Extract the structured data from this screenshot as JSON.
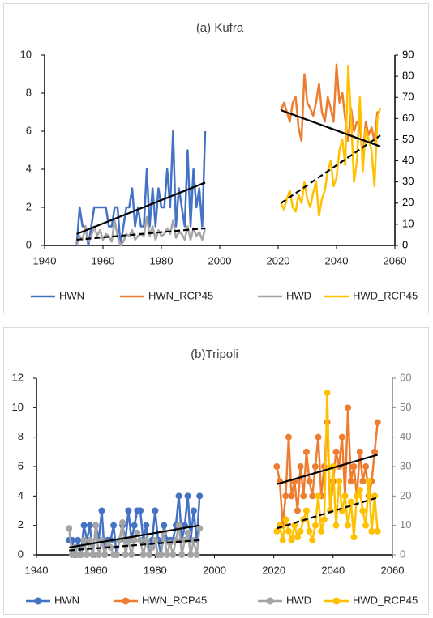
{
  "chart_data": [
    {
      "type": "line",
      "title": "(a) Kufra",
      "markers": false,
      "xlim": [
        1940,
        2060
      ],
      "xticks": [
        1940,
        1960,
        1980,
        2000,
        2020,
        2040,
        2060
      ],
      "ylim": [
        0,
        10
      ],
      "yticks": [
        0,
        2,
        4,
        6,
        8,
        10
      ],
      "y2lim": [
        0,
        90
      ],
      "y2ticks": [
        0,
        10,
        20,
        30,
        40,
        50,
        60,
        70,
        80,
        90
      ],
      "y2color": "#000000",
      "series": [
        {
          "name": "HWN",
          "color": "#4472c4",
          "axis": "y",
          "x": [
            1951,
            1952,
            1953,
            1954,
            1955,
            1956,
            1957,
            1958,
            1959,
            1960,
            1961,
            1962,
            1963,
            1964,
            1965,
            1966,
            1967,
            1968,
            1969,
            1970,
            1971,
            1972,
            1973,
            1974,
            1975,
            1976,
            1977,
            1978,
            1979,
            1980,
            1981,
            1982,
            1983,
            1984,
            1985,
            1986,
            1987,
            1988,
            1989,
            1990,
            1991,
            1992,
            1993,
            1994,
            1995
          ],
          "values": [
            0,
            2,
            1,
            1,
            0,
            1,
            2,
            2,
            2,
            2,
            2,
            1,
            1,
            2,
            2,
            0,
            1,
            2,
            2,
            3,
            1,
            2,
            1,
            1,
            4,
            1,
            3,
            1,
            3,
            2,
            2,
            4,
            2,
            6,
            1,
            3,
            2,
            1,
            5,
            1,
            4,
            2,
            3,
            1,
            6
          ]
        },
        {
          "name": "HWN_RCP45",
          "color": "#ed7d31",
          "axis": "y",
          "x": [
            2021,
            2022,
            2023,
            2024,
            2025,
            2026,
            2027,
            2028,
            2029,
            2030,
            2031,
            2032,
            2033,
            2034,
            2035,
            2036,
            2037,
            2038,
            2039,
            2040,
            2041,
            2042,
            2043,
            2044,
            2045,
            2046,
            2047,
            2048,
            2049,
            2050,
            2051,
            2052,
            2053,
            2054,
            2055
          ],
          "values": [
            7.1,
            7.5,
            7,
            6.5,
            7.5,
            7.8,
            6.2,
            5.5,
            9,
            7.5,
            7.2,
            6.8,
            7.5,
            8.5,
            7,
            6.5,
            7.8,
            7.2,
            6.5,
            9.5,
            7.5,
            8,
            6.6,
            5.5,
            7.2,
            6,
            6.5,
            6.4,
            4.5,
            6.5,
            5.8,
            6.2,
            5.5,
            7,
            7
          ]
        },
        {
          "name": "HWD",
          "color": "#a5a5a5",
          "axis": "y",
          "x": [
            1951,
            1952,
            1953,
            1954,
            1955,
            1956,
            1957,
            1958,
            1959,
            1960,
            1961,
            1962,
            1963,
            1964,
            1965,
            1966,
            1967,
            1968,
            1969,
            1970,
            1971,
            1972,
            1973,
            1974,
            1975,
            1976,
            1977,
            1978,
            1979,
            1980,
            1981,
            1982,
            1983,
            1984,
            1985,
            1986,
            1987,
            1988,
            1989,
            1990,
            1991,
            1992,
            1993,
            1994,
            1995
          ],
          "values": [
            0,
            0.5,
            0.3,
            1,
            0.2,
            0.5,
            1,
            0.5,
            0.8,
            0.3,
            0.6,
            0.5,
            0.2,
            1.3,
            0.5,
            0,
            0.2,
            0.6,
            0.5,
            0.8,
            0.3,
            0.5,
            0.6,
            0.5,
            1.5,
            0.5,
            1,
            0.3,
            0.8,
            0.5,
            0.6,
            0.9,
            0.6,
            1.3,
            0.4,
            0.7,
            0.6,
            0.3,
            1,
            0.3,
            0.9,
            0.5,
            0.7,
            0.3,
            0.9
          ]
        },
        {
          "name": "HWD_RCP45",
          "color": "#ffc000",
          "axis": "y2",
          "x": [
            2021,
            2022,
            2023,
            2024,
            2025,
            2026,
            2027,
            2028,
            2029,
            2030,
            2031,
            2032,
            2033,
            2034,
            2035,
            2036,
            2037,
            2038,
            2039,
            2040,
            2041,
            2042,
            2043,
            2044,
            2045,
            2046,
            2047,
            2048,
            2049,
            2050,
            2051,
            2052,
            2053,
            2054,
            2055
          ],
          "values": [
            20,
            17,
            22,
            26,
            18,
            16,
            24,
            20,
            30,
            22,
            18,
            25,
            30,
            14,
            22,
            26,
            35,
            40,
            28,
            32,
            45,
            50,
            38,
            85,
            60,
            30,
            40,
            70,
            35,
            55,
            50,
            45,
            28,
            60,
            65
          ]
        }
      ],
      "trendlines": [
        {
          "x": [
            1951,
            1995
          ],
          "values": [
            0.6,
            3.3
          ],
          "dashed": false,
          "axis": "y"
        },
        {
          "x": [
            1951,
            1995
          ],
          "values": [
            0.3,
            0.9
          ],
          "dashed": true,
          "axis": "y"
        },
        {
          "x": [
            2021,
            2055
          ],
          "values": [
            7.1,
            5.2
          ],
          "dashed": false,
          "axis": "y"
        },
        {
          "x": [
            2021,
            2055
          ],
          "values": [
            20,
            52
          ],
          "dashed": true,
          "axis": "y2"
        }
      ]
    },
    {
      "type": "line",
      "title": "(b)Tripoli",
      "markers": true,
      "xlim": [
        1940,
        2060
      ],
      "xticks": [
        1940,
        1960,
        1980,
        2000,
        2020,
        2040,
        2060
      ],
      "ylim": [
        0,
        12
      ],
      "yticks": [
        0,
        2,
        4,
        6,
        8,
        10,
        12
      ],
      "y2lim": [
        0,
        60
      ],
      "y2ticks": [
        0,
        10,
        20,
        30,
        40,
        50,
        60
      ],
      "y2color": "#808080",
      "series": [
        {
          "name": "HWN",
          "color": "#4472c4",
          "axis": "y",
          "x": [
            1951,
            1952,
            1953,
            1954,
            1955,
            1956,
            1957,
            1958,
            1959,
            1960,
            1961,
            1962,
            1963,
            1964,
            1965,
            1966,
            1967,
            1968,
            1969,
            1970,
            1971,
            1972,
            1973,
            1974,
            1975,
            1976,
            1977,
            1978,
            1979,
            1980,
            1981,
            1982,
            1983,
            1984,
            1985,
            1986,
            1987,
            1988,
            1989,
            1990,
            1991,
            1992,
            1993,
            1994,
            1995
          ],
          "values": [
            1,
            1,
            0,
            1,
            0,
            2,
            1,
            2,
            0,
            2,
            1,
            3,
            0,
            1,
            1,
            2,
            0,
            1,
            2,
            1,
            3,
            1,
            2,
            3,
            3,
            1,
            2,
            0,
            1,
            3,
            1,
            0,
            2,
            1,
            1,
            1,
            2,
            4,
            1,
            2,
            4,
            1,
            3,
            1,
            4
          ]
        },
        {
          "name": "HWN_RCP45",
          "color": "#ed7d31",
          "axis": "y2",
          "x": [
            2021,
            2022,
            2023,
            2024,
            2025,
            2026,
            2027,
            2028,
            2029,
            2030,
            2031,
            2032,
            2033,
            2034,
            2035,
            2036,
            2037,
            2038,
            2039,
            2040,
            2041,
            2042,
            2043,
            2044,
            2045,
            2046,
            2047,
            2048,
            2049,
            2050,
            2051,
            2052,
            2053,
            2054,
            2055
          ],
          "values": [
            30,
            25,
            10,
            20,
            40,
            20,
            25,
            15,
            30,
            20,
            35,
            25,
            20,
            30,
            40,
            20,
            30,
            45,
            15,
            25,
            35,
            30,
            40,
            20,
            50,
            25,
            30,
            20,
            35,
            25,
            30,
            20,
            25,
            35,
            45
          ]
        },
        {
          "name": "HWD",
          "color": "#a5a5a5",
          "axis": "y",
          "x": [
            1951,
            1952,
            1953,
            1954,
            1955,
            1956,
            1957,
            1958,
            1959,
            1960,
            1961,
            1962,
            1963,
            1964,
            1965,
            1966,
            1967,
            1968,
            1969,
            1970,
            1971,
            1972,
            1973,
            1974,
            1975,
            1976,
            1977,
            1978,
            1979,
            1980,
            1981,
            1982,
            1983,
            1984,
            1985,
            1986,
            1987,
            1988,
            1989,
            1990,
            1991,
            1992,
            1993,
            1994,
            1995
          ],
          "values": [
            1.8,
            0,
            0.5,
            0,
            0,
            1,
            0,
            1,
            0,
            2,
            0,
            1,
            0,
            0.8,
            0.5,
            0,
            0,
            1,
            2.2,
            0,
            1,
            0,
            1,
            1.5,
            1,
            0,
            1,
            0,
            0.5,
            1,
            0,
            0,
            1.5,
            0,
            0.8,
            0,
            1,
            2,
            0,
            1,
            1.5,
            0,
            1,
            0,
            1.8
          ]
        },
        {
          "name": "HWD_RCP45",
          "color": "#ffc000",
          "axis": "y2",
          "x": [
            2021,
            2022,
            2023,
            2024,
            2025,
            2026,
            2027,
            2028,
            2029,
            2030,
            2031,
            2032,
            2033,
            2034,
            2035,
            2036,
            2037,
            2038,
            2039,
            2040,
            2041,
            2042,
            2043,
            2044,
            2045,
            2046,
            2047,
            2048,
            2049,
            2050,
            2051,
            2052,
            2053,
            2054,
            2055
          ],
          "values": [
            8,
            10,
            5,
            12,
            8,
            5,
            10,
            6,
            8,
            12,
            15,
            8,
            5,
            10,
            20,
            8,
            12,
            55,
            15,
            30,
            10,
            25,
            15,
            20,
            10,
            18,
            6,
            20,
            22,
            15,
            10,
            25,
            8,
            20,
            8
          ]
        }
      ],
      "trendlines": [
        {
          "x": [
            1951,
            1995
          ],
          "values": [
            0.5,
            2.0
          ],
          "dashed": false,
          "axis": "y"
        },
        {
          "x": [
            1951,
            1995
          ],
          "values": [
            0.3,
            1.0
          ],
          "dashed": true,
          "axis": "y"
        },
        {
          "x": [
            2021,
            2055
          ],
          "values": [
            24,
            34
          ],
          "dashed": false,
          "axis": "y2"
        },
        {
          "x": [
            2021,
            2055
          ],
          "values": [
            9,
            19.5
          ],
          "dashed": true,
          "axis": "y2"
        }
      ]
    }
  ]
}
